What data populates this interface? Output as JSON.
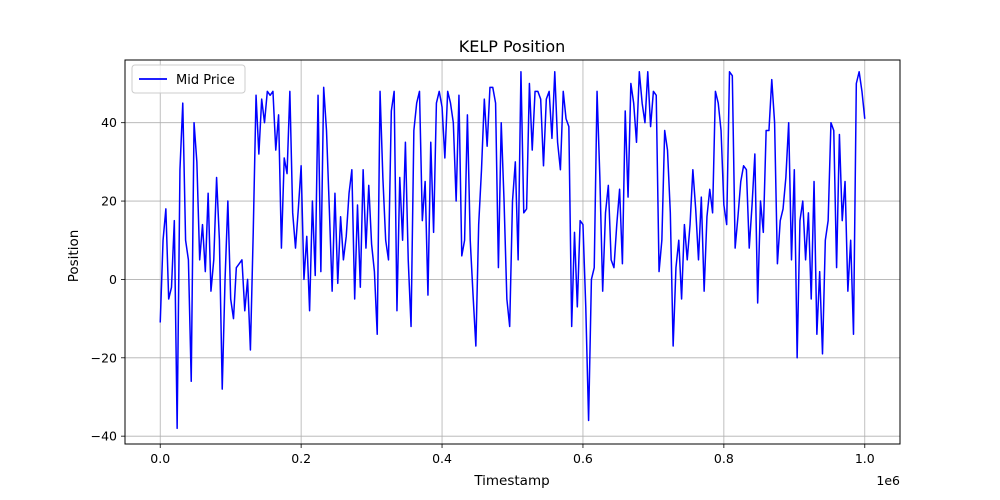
{
  "chart_data": {
    "type": "line",
    "title": "KELP Position",
    "xlabel": "Timestamp",
    "ylabel": "Position",
    "x_offset_label": "1e6",
    "xlim": [
      -0.05,
      1.05
    ],
    "ylim": [
      -42,
      56
    ],
    "x_ticks": [
      0.0,
      0.2,
      0.4,
      0.6,
      0.8,
      1.0
    ],
    "x_tick_labels": [
      "0.0",
      "0.2",
      "0.4",
      "0.6",
      "0.8",
      "1.0"
    ],
    "y_ticks": [
      -40,
      -20,
      0,
      20,
      40
    ],
    "y_tick_labels": [
      "−40",
      "−20",
      "0",
      "20",
      "40"
    ],
    "grid": true,
    "legend_position": "top-left",
    "series": [
      {
        "name": "Mid Price",
        "color": "#0000ff",
        "x": [
          0.0,
          0.004,
          0.008,
          0.012,
          0.016,
          0.02,
          0.024,
          0.028,
          0.032,
          0.036,
          0.04,
          0.044,
          0.048,
          0.052,
          0.056,
          0.06,
          0.064,
          0.068,
          0.072,
          0.076,
          0.08,
          0.084,
          0.088,
          0.092,
          0.096,
          0.1,
          0.104,
          0.108,
          0.112,
          0.116,
          0.12,
          0.124,
          0.128,
          0.132,
          0.136,
          0.14,
          0.144,
          0.148,
          0.152,
          0.156,
          0.16,
          0.164,
          0.168,
          0.172,
          0.176,
          0.18,
          0.184,
          0.188,
          0.192,
          0.196,
          0.2,
          0.204,
          0.208,
          0.212,
          0.216,
          0.22,
          0.224,
          0.228,
          0.232,
          0.236,
          0.24,
          0.244,
          0.248,
          0.252,
          0.256,
          0.26,
          0.264,
          0.268,
          0.272,
          0.276,
          0.28,
          0.284,
          0.288,
          0.292,
          0.296,
          0.3,
          0.304,
          0.308,
          0.312,
          0.316,
          0.32,
          0.324,
          0.328,
          0.332,
          0.336,
          0.34,
          0.344,
          0.348,
          0.352,
          0.356,
          0.36,
          0.364,
          0.368,
          0.372,
          0.376,
          0.38,
          0.384,
          0.388,
          0.392,
          0.396,
          0.4,
          0.404,
          0.408,
          0.412,
          0.416,
          0.42,
          0.424,
          0.428,
          0.432,
          0.436,
          0.44,
          0.444,
          0.448,
          0.452,
          0.456,
          0.46,
          0.464,
          0.468,
          0.472,
          0.476,
          0.48,
          0.484,
          0.488,
          0.492,
          0.496,
          0.5,
          0.504,
          0.508,
          0.512,
          0.516,
          0.52,
          0.524,
          0.528,
          0.532,
          0.536,
          0.54,
          0.544,
          0.548,
          0.552,
          0.556,
          0.56,
          0.564,
          0.568,
          0.572,
          0.576,
          0.58,
          0.584,
          0.588,
          0.592,
          0.596,
          0.6,
          0.604,
          0.608,
          0.612,
          0.616,
          0.62,
          0.624,
          0.628,
          0.632,
          0.636,
          0.64,
          0.644,
          0.648,
          0.652,
          0.656,
          0.66,
          0.664,
          0.668,
          0.672,
          0.676,
          0.68,
          0.684,
          0.688,
          0.692,
          0.696,
          0.7,
          0.704,
          0.708,
          0.712,
          0.716,
          0.72,
          0.724,
          0.728,
          0.732,
          0.736,
          0.74,
          0.744,
          0.748,
          0.752,
          0.756,
          0.76,
          0.764,
          0.768,
          0.772,
          0.776,
          0.78,
          0.784,
          0.788,
          0.792,
          0.796,
          0.8,
          0.804,
          0.808,
          0.812,
          0.816,
          0.82,
          0.824,
          0.828,
          0.832,
          0.836,
          0.84,
          0.844,
          0.848,
          0.852,
          0.856,
          0.86,
          0.864,
          0.868,
          0.872,
          0.876,
          0.88,
          0.884,
          0.888,
          0.892,
          0.896,
          0.9,
          0.904,
          0.908,
          0.912,
          0.916,
          0.92,
          0.924,
          0.928,
          0.932,
          0.936,
          0.94,
          0.944,
          0.948,
          0.952,
          0.956,
          0.96,
          0.964,
          0.968,
          0.972,
          0.976,
          0.98,
          0.984,
          0.988,
          0.992,
          0.996,
          1.0
        ],
        "y": [
          -11,
          10,
          18,
          -5,
          -2,
          15,
          -38,
          28,
          45,
          10,
          5,
          -26,
          40,
          30,
          5,
          14,
          2,
          22,
          -3,
          5,
          26,
          10,
          -28,
          0,
          20,
          -5,
          -10,
          3,
          4,
          5,
          -8,
          0,
          -18,
          12,
          47,
          32,
          46,
          40,
          48,
          47,
          48,
          33,
          42,
          8,
          31,
          27,
          48,
          17,
          8,
          18,
          29,
          0,
          11,
          -8,
          20,
          1,
          47,
          2,
          49,
          38,
          18,
          -3,
          22,
          -1,
          16,
          5,
          11,
          22,
          28,
          -5,
          19,
          -2,
          28,
          8,
          24,
          9,
          2,
          -14,
          48,
          26,
          10,
          5,
          43,
          48,
          -8,
          26,
          10,
          35,
          5,
          -12,
          38,
          45,
          48,
          15,
          25,
          -4,
          35,
          12,
          45,
          48,
          44,
          31,
          48,
          45,
          40,
          20,
          47,
          6,
          10,
          42,
          10,
          -4,
          -17,
          14,
          28,
          46,
          34,
          49,
          49,
          45,
          3,
          40,
          20,
          -5,
          -12,
          20,
          30,
          5,
          53,
          17,
          18,
          50,
          33,
          48,
          48,
          46,
          29,
          46,
          48,
          36,
          53,
          35,
          28,
          48,
          41,
          39,
          -12,
          12,
          -7,
          15,
          14,
          -7,
          -36,
          0,
          3,
          48,
          26,
          -3,
          17,
          24,
          5,
          3,
          14,
          23,
          4,
          43,
          21,
          50,
          45,
          35,
          53,
          45,
          40,
          53,
          39,
          48,
          47,
          2,
          10,
          38,
          33,
          17,
          -17,
          3,
          10,
          -5,
          14,
          5,
          14,
          28,
          18,
          5,
          21,
          -3,
          16,
          23,
          17,
          48,
          45,
          38,
          19,
          14,
          53,
          52,
          8,
          16,
          25,
          29,
          28,
          8,
          19,
          32,
          -6,
          20,
          12,
          38,
          38,
          51,
          40,
          4,
          15,
          18,
          26,
          40,
          5,
          28,
          -20,
          15,
          20,
          5,
          17,
          -5,
          25,
          -14,
          2,
          -19,
          10,
          15,
          40,
          38,
          3,
          37,
          15,
          25,
          -3,
          10,
          -14,
          50,
          53,
          48,
          41
        ]
      }
    ]
  }
}
